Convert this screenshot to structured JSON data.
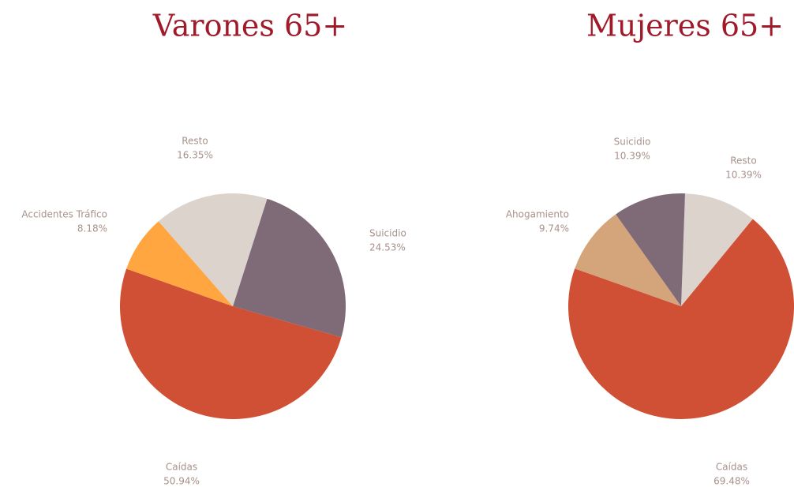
{
  "chart_data": [
    {
      "type": "pie",
      "title": "Varones 65+",
      "categories": [
        "Suicidio",
        "Caídas",
        "Accidentes Tráfico",
        "Resto"
      ],
      "values": [
        24.53,
        50.94,
        8.18,
        16.35
      ],
      "value_labels": [
        "24.53%",
        "50.94%",
        "8.18%",
        "16.35%"
      ],
      "colors": [
        "#7f6b77",
        "#d05035",
        "#ffa640",
        "#dcd3cc"
      ]
    },
    {
      "type": "pie",
      "title": "Mujeres 65+",
      "categories": [
        "Resto",
        "Caídas",
        "Ahogamiento",
        "Suicidio"
      ],
      "values": [
        10.39,
        69.48,
        9.74,
        10.39
      ],
      "value_labels": [
        "10.39%",
        "69.48%",
        "9.74%",
        "10.39%"
      ],
      "colors": [
        "#dcd3cc",
        "#d05035",
        "#d4a57a",
        "#7f6b77"
      ]
    }
  ]
}
